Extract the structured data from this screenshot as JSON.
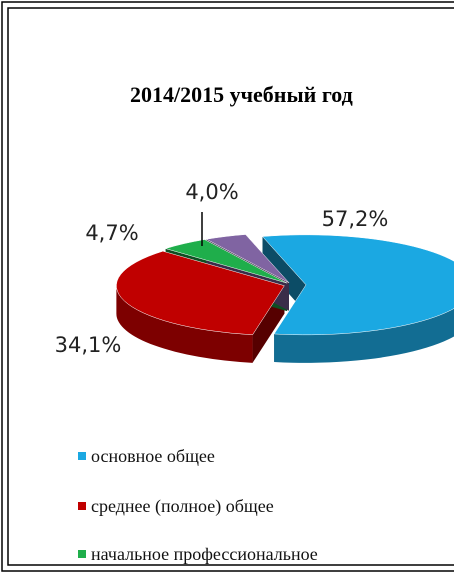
{
  "chart_data": {
    "type": "pie",
    "title": "2014/2015 учебный год",
    "categories": [
      "основное общее",
      "среднее (полное) общее",
      "начальное профессиональное",
      null
    ],
    "values": [
      57.2,
      34.1,
      4.7,
      4.0
    ],
    "value_labels": [
      "57,2%",
      "34,1%",
      "4,7%",
      "4,0%"
    ],
    "colors": [
      "#1ba8e2",
      "#c00000",
      "#1fae4b",
      "#8064a2"
    ],
    "legend": "bottom"
  }
}
